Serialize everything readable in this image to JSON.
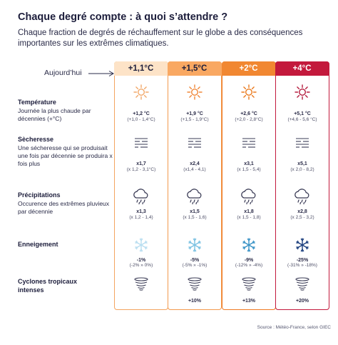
{
  "title": "Chaque degré compte : à quoi s’attendre ?",
  "subtitle": "Chaque fraction de degrés de réchauffement sur le globe a des conséquences importantes sur les extrêmes climatiques.",
  "today_label": "Aujourd’hui",
  "columns": [
    {
      "label": "+1,1°C",
      "head_bg": "#fde3c7",
      "head_color": "#1c1d3b",
      "border": "#f3a45f",
      "sun_color": "#f2a96a"
    },
    {
      "label": "+1,5°C",
      "head_bg": "#f9a862",
      "head_color": "#1c1d3b",
      "border": "#f39a4e",
      "sun_color": "#f0883a"
    },
    {
      "label": "+2°C",
      "head_bg": "#f18731",
      "head_color": "#ffffff",
      "border": "#ef7a23",
      "sun_color": "#ea7a1e"
    },
    {
      "label": "+4°C",
      "head_bg": "#c3193c",
      "head_color": "#ffffff",
      "border": "#c3193c",
      "sun_color": "#b51d3e"
    }
  ],
  "rows": [
    {
      "title": "Température",
      "desc": "Journée la plus chaude par décennies (+°C)",
      "values": [
        "+1,2 °C",
        "+1,9 °C",
        "+2,6 °C",
        "+5,1 °C"
      ],
      "ranges": [
        "(+1,0 - 1,4°C)",
        "(+1,5 - 1,9°C)",
        "(+2,0 - 2,8°C)",
        "(+4,6 - 5,6 °C)"
      ]
    },
    {
      "title": "Sècheresse",
      "desc": "Une sécheresse qui se produisait une fois par décennie se produira x fois plus",
      "values": [
        "x1,7",
        "x2,4",
        "x3,1",
        "x5,1"
      ],
      "ranges": [
        "(x 1,2 - 3,1°C)",
        "(x1,4 - 4,1)",
        "(x 1,5 - 5,4)",
        "(x 2,0 - 8,2)"
      ]
    },
    {
      "title": "Précipitations",
      "desc": "Occurence des extrêmes pluvieux par décennie",
      "values": [
        "x1,3",
        "x1,5",
        "x1,8",
        "x2,8"
      ],
      "ranges": [
        "(x 1,2 - 1,4)",
        "(x 1,5 - 1,6)",
        "(x 1,5 - 1,8)",
        "(x 2,5 - 3,2)"
      ]
    },
    {
      "title": "Enneigement",
      "desc": "",
      "values": [
        "-1%",
        "-5%",
        "-9%",
        "-25%"
      ],
      "ranges": [
        "(-2% » 0%)",
        "(-5% » -1%)",
        "(-12% » -4%)",
        "(-31% » -18%)"
      ]
    },
    {
      "title": "Cyclones tropicaux intenses",
      "desc": "",
      "values": [
        "",
        "+10%",
        "+13%",
        "+20%"
      ],
      "ranges": [
        "",
        "",
        "",
        ""
      ]
    }
  ],
  "source": "Source : Météo-France, selon GIEC",
  "icons": [
    "sun-icon",
    "drought-lines-icon",
    "rain-cloud-icon",
    "snowflake-icon",
    "cyclone-icon"
  ],
  "snow_colors": [
    "#b9def0",
    "#7cc2e2",
    "#3a93c6",
    "#1c3f7e"
  ]
}
